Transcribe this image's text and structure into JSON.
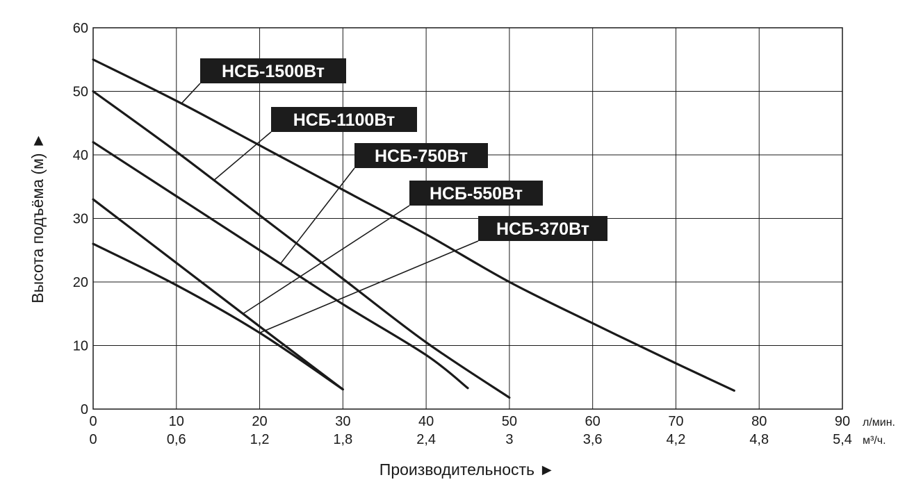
{
  "chart_data": {
    "type": "line",
    "title": "",
    "xlabel": "Производительность ►",
    "ylabel": "Высота подъёма (м) ►",
    "xlim": [
      0,
      90
    ],
    "ylim": [
      0,
      60
    ],
    "x_ticks": [
      "0",
      "10",
      "20",
      "30",
      "40",
      "50",
      "60",
      "70",
      "80",
      "90"
    ],
    "x_unit": "л/мин.",
    "x2_ticks": [
      "0",
      "0,6",
      "1,2",
      "1,8",
      "2,4",
      "3",
      "3,6",
      "4,2",
      "4,8",
      "5,4"
    ],
    "x2_unit": "м³/ч.",
    "y_ticks": [
      "0",
      "10",
      "20",
      "30",
      "40",
      "50",
      "60"
    ],
    "grid": true,
    "series": [
      {
        "name": "НСБ-1500Вт",
        "x": [
          0,
          10,
          20,
          30,
          40,
          50,
          60,
          70,
          77
        ],
        "y": [
          55,
          48.5,
          41.5,
          34.5,
          27.5,
          20,
          13.5,
          7.2,
          2.9
        ]
      },
      {
        "name": "НСБ-1100Вт",
        "x": [
          0,
          10,
          20,
          30,
          40,
          50
        ],
        "y": [
          50,
          40.5,
          30.5,
          20.5,
          10.5,
          1.8
        ]
      },
      {
        "name": "НСБ-750Вт",
        "x": [
          0,
          10,
          20,
          30,
          40,
          45
        ],
        "y": [
          42,
          33.5,
          25,
          16.5,
          8.5,
          3.3
        ]
      },
      {
        "name": "НСБ-550Вт",
        "x": [
          0,
          10,
          20,
          30
        ],
        "y": [
          33,
          23,
          13,
          3.1
        ]
      },
      {
        "name": "НСБ-370Вт",
        "x": [
          0,
          10,
          20,
          30
        ],
        "y": [
          26,
          19.5,
          12,
          3.1
        ]
      }
    ],
    "annotations": [
      {
        "text": "НСБ-1500Вт",
        "series": 0,
        "at_x": 10.6
      },
      {
        "text": "НСБ-1100Вт",
        "series": 1,
        "at_x": 14.5
      },
      {
        "text": "НСБ-750Вт",
        "series": 2,
        "at_x": 22.5
      },
      {
        "text": "НСБ-550Вт",
        "series": 3,
        "at_x": 18
      },
      {
        "text": "НСБ-370Вт",
        "series": 4,
        "at_x": 20
      }
    ]
  }
}
